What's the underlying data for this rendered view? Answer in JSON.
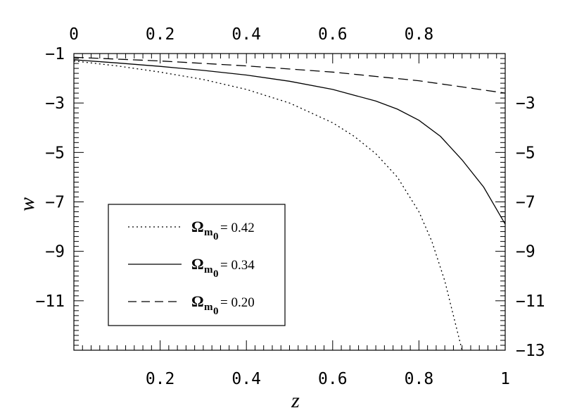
{
  "chart_data": {
    "type": "line",
    "title": "",
    "xlabel": "z",
    "ylabel": "w",
    "xlim": [
      0,
      1
    ],
    "ylim": [
      -13,
      -1
    ],
    "x_ticks_bottom": [
      "0.2",
      "0.4",
      "0.6",
      "0.8",
      "1"
    ],
    "x_ticks_top": [
      "0",
      "0.2",
      "0.4",
      "0.6",
      "0.8"
    ],
    "y_ticks_left": [
      "-1",
      "-3",
      "-5",
      "-7",
      "-9",
      "-11"
    ],
    "y_ticks_right": [
      "-3",
      "-5",
      "-7",
      "-9",
      "-11",
      "-13"
    ],
    "grid": false,
    "legend_position": "lower-left",
    "series": [
      {
        "name": "0.42",
        "legend_symbol": "Ω",
        "legend_subscript": "m0",
        "legend_suffix": "= 0.42",
        "style": "dotted",
        "x": [
          0,
          0.1,
          0.2,
          0.3,
          0.4,
          0.5,
          0.6,
          0.65,
          0.7,
          0.75,
          0.8,
          0.83,
          0.86,
          0.88,
          0.9
        ],
        "y": [
          -1.3,
          -1.5,
          -1.75,
          -2.05,
          -2.45,
          -3.0,
          -3.8,
          -4.35,
          -5.05,
          -6.0,
          -7.4,
          -8.6,
          -10.2,
          -11.6,
          -13.0
        ]
      },
      {
        "name": "0.34",
        "legend_symbol": "Ω",
        "legend_subscript": "m0",
        "legend_suffix": "= 0.34",
        "style": "solid",
        "x": [
          0,
          0.1,
          0.2,
          0.3,
          0.4,
          0.5,
          0.6,
          0.7,
          0.75,
          0.8,
          0.85,
          0.9,
          0.95,
          1.0
        ],
        "y": [
          -1.25,
          -1.38,
          -1.52,
          -1.68,
          -1.87,
          -2.12,
          -2.45,
          -2.92,
          -3.25,
          -3.7,
          -4.35,
          -5.3,
          -6.4,
          -7.9
        ]
      },
      {
        "name": "0.20",
        "legend_symbol": "Ω",
        "legend_subscript": "m0",
        "legend_suffix": "= 0.20",
        "style": "dashed",
        "x": [
          0,
          0.2,
          0.4,
          0.6,
          0.8,
          1.0
        ],
        "y": [
          -1.15,
          -1.3,
          -1.5,
          -1.75,
          -2.1,
          -2.6
        ]
      }
    ]
  }
}
